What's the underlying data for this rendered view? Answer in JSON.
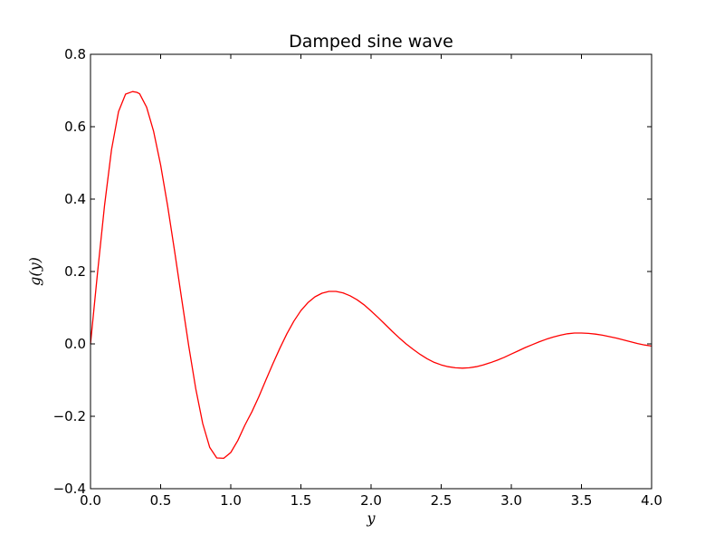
{
  "chart_data": {
    "type": "line",
    "title": "Damped sine wave",
    "xlabel": "y",
    "ylabel": "g(y)",
    "xlim": [
      0.0,
      4.0
    ],
    "ylim": [
      -0.4,
      0.8
    ],
    "x_ticks": [
      0.0,
      0.5,
      1.0,
      1.5,
      2.0,
      2.5,
      3.0,
      3.5,
      4.0
    ],
    "x_tick_labels": [
      "0.0",
      "0.5",
      "1.0",
      "1.5",
      "2.0",
      "2.5",
      "3.0",
      "3.5",
      "4.0"
    ],
    "y_ticks": [
      -0.4,
      -0.2,
      0.0,
      0.2,
      0.4,
      0.6,
      0.8
    ],
    "y_tick_labels": [
      "−0.4",
      "−0.2",
      "0.0",
      "0.2",
      "0.4",
      "0.6",
      "0.8"
    ],
    "grid": false,
    "series": [
      {
        "color": "#ff0000",
        "x": [
          0.0,
          0.05,
          0.1,
          0.15,
          0.2,
          0.25,
          0.3,
          0.33,
          0.35,
          0.4,
          0.45,
          0.5,
          0.55,
          0.6,
          0.65,
          0.7,
          0.75,
          0.8,
          0.85,
          0.9,
          0.95,
          1.0,
          1.05,
          1.1,
          1.12,
          1.15,
          1.2,
          1.25,
          1.3,
          1.35,
          1.4,
          1.45,
          1.5,
          1.55,
          1.6,
          1.65,
          1.7,
          1.75,
          1.8,
          1.85,
          1.9,
          1.95,
          2.0,
          2.05,
          2.1,
          2.15,
          2.2,
          2.25,
          2.3,
          2.35,
          2.4,
          2.45,
          2.5,
          2.55,
          2.6,
          2.65,
          2.7,
          2.75,
          2.8,
          2.85,
          2.9,
          2.95,
          3.0,
          3.05,
          3.1,
          3.15,
          3.2,
          3.25,
          3.3,
          3.35,
          3.4,
          3.45,
          3.5,
          3.55,
          3.6,
          3.65,
          3.7,
          3.75,
          3.8,
          3.85,
          3.9,
          3.95,
          4.0
        ],
        "y": [
          0.0,
          0.196,
          0.382,
          0.537,
          0.642,
          0.69,
          0.697,
          0.695,
          0.691,
          0.654,
          0.587,
          0.494,
          0.381,
          0.255,
          0.124,
          -0.005,
          -0.123,
          -0.22,
          -0.286,
          -0.315,
          -0.316,
          -0.3,
          -0.267,
          -0.225,
          -0.21,
          -0.188,
          -0.146,
          -0.1,
          -0.055,
          -0.012,
          0.028,
          0.063,
          0.092,
          0.114,
          0.13,
          0.14,
          0.145,
          0.145,
          0.141,
          0.133,
          0.122,
          0.108,
          0.091,
          0.073,
          0.054,
          0.035,
          0.017,
          0.0,
          -0.015,
          -0.029,
          -0.041,
          -0.051,
          -0.058,
          -0.063,
          -0.066,
          -0.067,
          -0.066,
          -0.063,
          -0.058,
          -0.052,
          -0.045,
          -0.037,
          -0.028,
          -0.019,
          -0.01,
          -0.002,
          0.006,
          0.013,
          0.019,
          0.024,
          0.028,
          0.03,
          0.03,
          0.029,
          0.027,
          0.024,
          0.02,
          0.016,
          0.011,
          0.006,
          0.001,
          -0.003,
          -0.006
        ]
      }
    ]
  }
}
